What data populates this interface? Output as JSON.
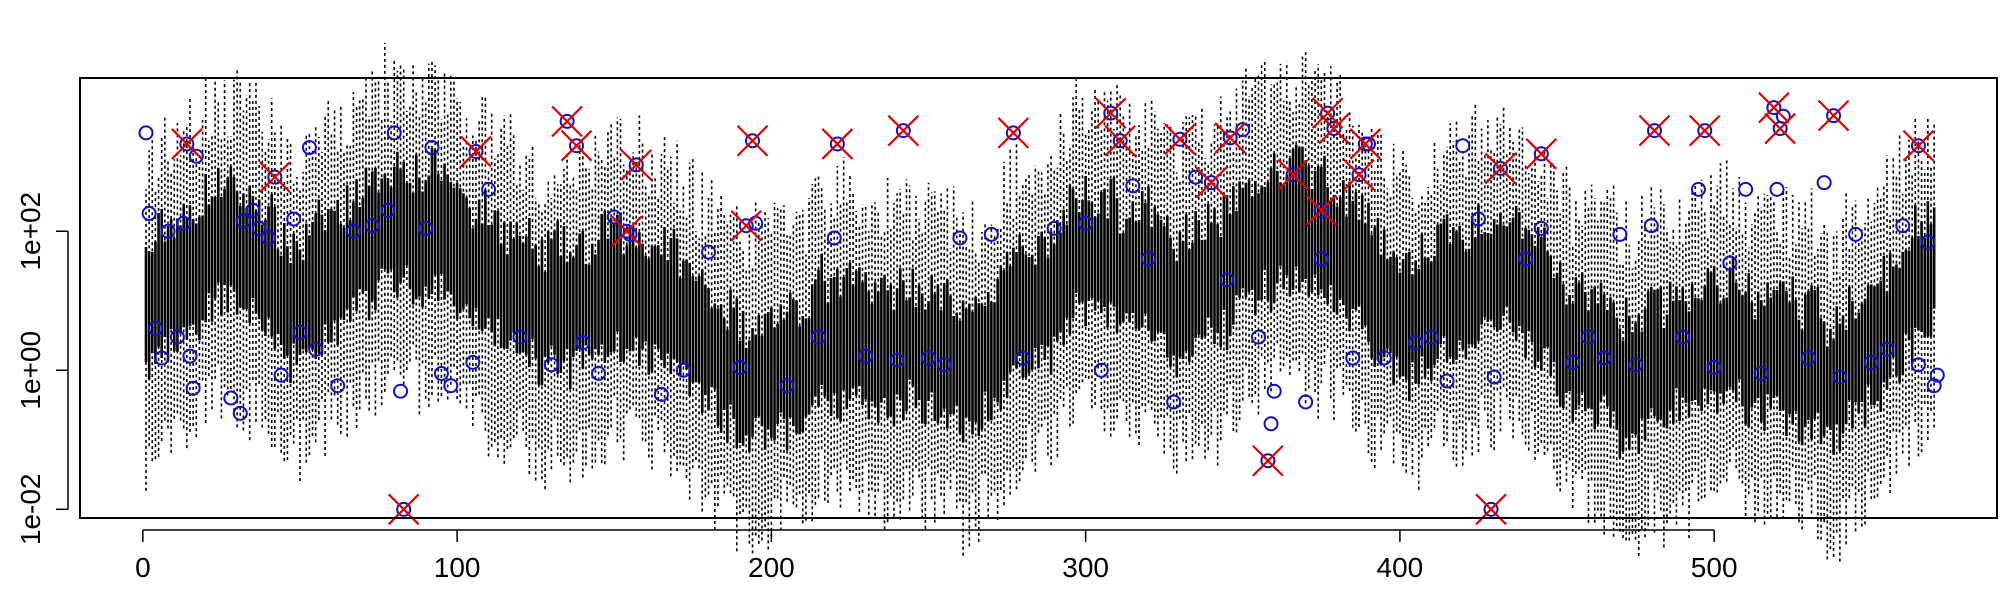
{
  "chart_data": {
    "type": "scatter",
    "title": "",
    "xlabel": "",
    "ylabel": "",
    "y_scale": "log",
    "xlim": [
      -20,
      590
    ],
    "ylim": [
      0.0075,
      16000
    ],
    "x_ticks": [
      0,
      100,
      200,
      300,
      400,
      500
    ],
    "x_tick_labels": [
      "0",
      "100",
      "200",
      "300",
      "400",
      "500"
    ],
    "y_ticks": [
      0.01,
      1,
      100
    ],
    "y_tick_labels": [
      "1e-02",
      "1e+00",
      "1e+02"
    ],
    "grid": false,
    "legend": "none",
    "n_points": 570,
    "colors": {
      "intervals": "#000000",
      "observed": "#1010c8",
      "outlier": "#e00000",
      "frame": "#000000"
    },
    "series": [
      {
        "marker": "circle",
        "points": [
          {
            "x": 1,
            "y": 2600
          },
          {
            "x": 2,
            "y": 180
          },
          {
            "x": 4,
            "y": 4
          },
          {
            "x": 6,
            "y": 1.5
          },
          {
            "x": 8,
            "y": 100
          },
          {
            "x": 11,
            "y": 3
          },
          {
            "x": 13,
            "y": 130
          },
          {
            "x": 15,
            "y": 1.6
          },
          {
            "x": 16,
            "y": 0.55
          },
          {
            "x": 17,
            "y": 1200
          },
          {
            "x": 28,
            "y": 0.4
          },
          {
            "x": 31,
            "y": 0.24
          },
          {
            "x": 32,
            "y": 140
          },
          {
            "x": 35,
            "y": 200
          },
          {
            "x": 37,
            "y": 110
          },
          {
            "x": 40,
            "y": 80
          },
          {
            "x": 44,
            "y": 0.85
          },
          {
            "x": 48,
            "y": 150
          },
          {
            "x": 50,
            "y": 3.5
          },
          {
            "x": 53,
            "y": 1600
          },
          {
            "x": 55,
            "y": 2
          },
          {
            "x": 62,
            "y": 0.6
          },
          {
            "x": 67,
            "y": 100
          },
          {
            "x": 73,
            "y": 120
          },
          {
            "x": 78,
            "y": 200
          },
          {
            "x": 80,
            "y": 2600
          },
          {
            "x": 82,
            "y": 0.5
          },
          {
            "x": 90,
            "y": 110
          },
          {
            "x": 92,
            "y": 1600
          },
          {
            "x": 95,
            "y": 0.9
          },
          {
            "x": 98,
            "y": 0.6
          },
          {
            "x": 105,
            "y": 1.3
          },
          {
            "x": 110,
            "y": 400
          },
          {
            "x": 120,
            "y": 3
          },
          {
            "x": 130,
            "y": 1.2
          },
          {
            "x": 140,
            "y": 2.5
          },
          {
            "x": 145,
            "y": 0.9
          },
          {
            "x": 150,
            "y": 160
          },
          {
            "x": 155,
            "y": 90
          },
          {
            "x": 165,
            "y": 0.45
          },
          {
            "x": 172,
            "y": 1
          },
          {
            "x": 180,
            "y": 50
          },
          {
            "x": 190,
            "y": 1.1
          },
          {
            "x": 195,
            "y": 130
          },
          {
            "x": 205,
            "y": 0.6
          },
          {
            "x": 215,
            "y": 3
          },
          {
            "x": 220,
            "y": 80
          },
          {
            "x": 230,
            "y": 1.6
          },
          {
            "x": 240,
            "y": 1.4
          },
          {
            "x": 250,
            "y": 1.5
          },
          {
            "x": 255,
            "y": 1.2
          },
          {
            "x": 260,
            "y": 80
          },
          {
            "x": 270,
            "y": 90
          },
          {
            "x": 280,
            "y": 1.5
          },
          {
            "x": 290,
            "y": 110
          },
          {
            "x": 300,
            "y": 130
          },
          {
            "x": 305,
            "y": 1
          },
          {
            "x": 315,
            "y": 450
          },
          {
            "x": 320,
            "y": 40
          },
          {
            "x": 328,
            "y": 0.35
          },
          {
            "x": 335,
            "y": 600
          },
          {
            "x": 345,
            "y": 20
          },
          {
            "x": 350,
            "y": 2900
          },
          {
            "x": 355,
            "y": 3
          },
          {
            "x": 359,
            "y": 0.17
          },
          {
            "x": 360,
            "y": 0.5
          },
          {
            "x": 370,
            "y": 0.35
          },
          {
            "x": 375,
            "y": 40
          },
          {
            "x": 385,
            "y": 1.5
          },
          {
            "x": 390,
            "y": 1800
          },
          {
            "x": 395,
            "y": 1.5
          },
          {
            "x": 405,
            "y": 2.5
          },
          {
            "x": 410,
            "y": 3
          },
          {
            "x": 415,
            "y": 0.7
          },
          {
            "x": 420,
            "y": 1700
          },
          {
            "x": 425,
            "y": 150
          },
          {
            "x": 430,
            "y": 0.8
          },
          {
            "x": 440,
            "y": 40
          },
          {
            "x": 445,
            "y": 110
          },
          {
            "x": 455,
            "y": 1.3
          },
          {
            "x": 460,
            "y": 3
          },
          {
            "x": 465,
            "y": 1.5
          },
          {
            "x": 470,
            "y": 90
          },
          {
            "x": 475,
            "y": 1.2
          },
          {
            "x": 480,
            "y": 120
          },
          {
            "x": 490,
            "y": 3
          },
          {
            "x": 495,
            "y": 400
          },
          {
            "x": 500,
            "y": 1.1
          },
          {
            "x": 505,
            "y": 35
          },
          {
            "x": 510,
            "y": 400
          },
          {
            "x": 515,
            "y": 0.9
          },
          {
            "x": 520,
            "y": 400
          },
          {
            "x": 522,
            "y": 4500
          },
          {
            "x": 530,
            "y": 1.5
          },
          {
            "x": 535,
            "y": 500
          },
          {
            "x": 540,
            "y": 0.8
          },
          {
            "x": 545,
            "y": 90
          },
          {
            "x": 550,
            "y": 1.3
          },
          {
            "x": 555,
            "y": 2
          },
          {
            "x": 560,
            "y": 120
          },
          {
            "x": 565,
            "y": 1.2
          },
          {
            "x": 568,
            "y": 70
          },
          {
            "x": 570,
            "y": 0.6
          },
          {
            "x": 571,
            "y": 0.85
          }
        ]
      },
      {
        "marker": "x",
        "points": [
          {
            "x": 14,
            "y": 1800
          },
          {
            "x": 42,
            "y": 600
          },
          {
            "x": 83,
            "y": 0.01
          },
          {
            "x": 106,
            "y": 1400
          },
          {
            "x": 135,
            "y": 3800
          },
          {
            "x": 138,
            "y": 1700
          },
          {
            "x": 154,
            "y": 100
          },
          {
            "x": 157,
            "y": 900
          },
          {
            "x": 192,
            "y": 120
          },
          {
            "x": 194,
            "y": 2000
          },
          {
            "x": 221,
            "y": 1800
          },
          {
            "x": 242,
            "y": 2800
          },
          {
            "x": 277,
            "y": 2600
          },
          {
            "x": 308,
            "y": 5000
          },
          {
            "x": 311,
            "y": 2000
          },
          {
            "x": 330,
            "y": 2100
          },
          {
            "x": 340,
            "y": 500
          },
          {
            "x": 346,
            "y": 2200
          },
          {
            "x": 358,
            "y": 0.05
          },
          {
            "x": 366,
            "y": 650
          },
          {
            "x": 375,
            "y": 200
          },
          {
            "x": 377,
            "y": 5000
          },
          {
            "x": 379,
            "y": 3000
          },
          {
            "x": 387,
            "y": 650
          },
          {
            "x": 389,
            "y": 1800
          },
          {
            "x": 429,
            "y": 0.01
          },
          {
            "x": 432,
            "y": 800
          },
          {
            "x": 445,
            "y": 1300
          },
          {
            "x": 481,
            "y": 2800
          },
          {
            "x": 497,
            "y": 2800
          },
          {
            "x": 519,
            "y": 6000
          },
          {
            "x": 521,
            "y": 3000
          },
          {
            "x": 538,
            "y": 4600
          },
          {
            "x": 565,
            "y": 1700
          }
        ]
      }
    ]
  }
}
